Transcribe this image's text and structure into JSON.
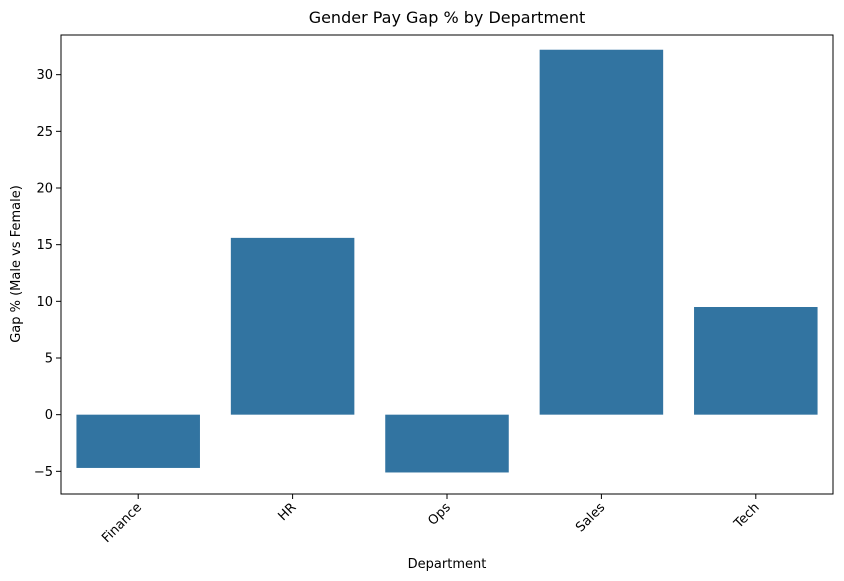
{
  "chart_data": {
    "type": "bar",
    "title": "Gender Pay Gap % by Department",
    "xlabel": "Department",
    "ylabel": "Gap % (Male vs Female)",
    "categories": [
      "Finance",
      "HR",
      "Ops",
      "Sales",
      "Tech"
    ],
    "values": [
      -4.7,
      15.6,
      -5.1,
      32.2,
      9.5
    ],
    "ylim": [
      -7,
      33.5
    ],
    "yticks": [
      -5,
      0,
      5,
      10,
      15,
      20,
      25,
      30
    ],
    "grid": false,
    "legend": "none",
    "colors": {
      "bar": "#3274a1",
      "axis": "#000000",
      "background": "#ffffff"
    }
  }
}
